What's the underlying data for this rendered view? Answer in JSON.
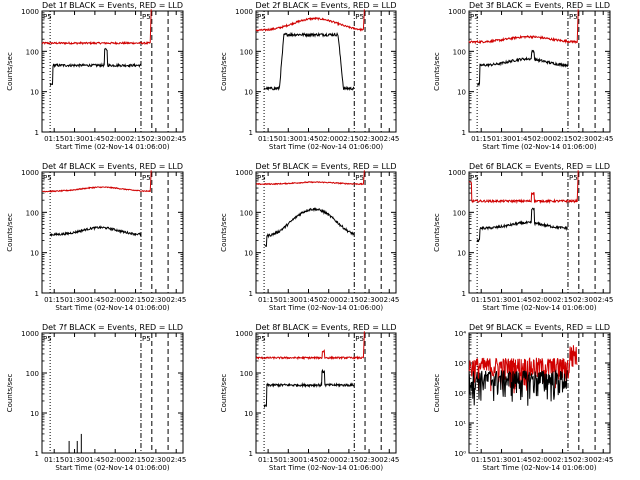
{
  "chart_data": [
    {
      "type": "line",
      "title": "Det 1f BLACK = Events, RED = LLD",
      "ylabel": "Counts/sec",
      "xlabel": "Start Time (02-Nov-14 01:06:00)",
      "x_ticks": [
        "01:15",
        "01:30",
        "01:45",
        "02:00",
        "02:15",
        "02:30",
        "02:45"
      ],
      "y_ticks": [
        "1",
        "10",
        "100",
        "1000"
      ],
      "ylim": [
        1,
        1000
      ],
      "y_scale": "log",
      "xlim": [
        "01:06",
        "02:50"
      ],
      "markers": {
        "dotted": [
          "01:12"
        ],
        "dash_dot": [
          "02:19"
        ],
        "dashed": [
          "02:27",
          "02:39"
        ],
        "label": "P5"
      },
      "series": [
        {
          "color": "#d00000",
          "shape": "flat",
          "start": "01:06",
          "end": "02:26",
          "level": 160,
          "noise": 0.05,
          "tail_spike": 1100
        },
        {
          "color": "#000000",
          "shape": "flat",
          "start": "01:12",
          "end": "02:19",
          "level": 45,
          "noise": 0.07,
          "head_dip": 15,
          "spike_at": "01:53",
          "spike_val": 110
        }
      ]
    },
    {
      "type": "line",
      "title": "Det 2f BLACK = Events, RED = LLD",
      "ylabel": "Counts/sec",
      "xlabel": "Start Time (02-Nov-14 01:06:00)",
      "x_ticks": [
        "01:15",
        "01:30",
        "01:45",
        "02:00",
        "02:15",
        "02:30",
        "02:45"
      ],
      "y_ticks": [
        "1",
        "10",
        "100",
        "1000"
      ],
      "ylim": [
        1,
        1000
      ],
      "y_scale": "log",
      "xlim": [
        "01:06",
        "02:50"
      ],
      "markers": {
        "dotted": [
          "01:12"
        ],
        "dash_dot": [
          "02:19"
        ],
        "dashed": [
          "02:27",
          "02:39"
        ],
        "label": "P5"
      },
      "series": [
        {
          "color": "#d00000",
          "shape": "hump",
          "start": "01:06",
          "end": "02:26",
          "level": 330,
          "peak": 650,
          "noise": 0.05,
          "tail_spike": 1100
        },
        {
          "color": "#000000",
          "shape": "plateau",
          "start": "01:12",
          "end": "02:19",
          "level": 12,
          "peak": 260,
          "noise": 0.08
        }
      ]
    },
    {
      "type": "line",
      "title": "Det 3f BLACK = Events, RED = LLD",
      "ylabel": "Counts/sec",
      "xlabel": "Start Time (02-Nov-14 01:06:00)",
      "x_ticks": [
        "01:15",
        "01:30",
        "01:45",
        "02:00",
        "02:15",
        "02:30",
        "02:45"
      ],
      "y_ticks": [
        "1",
        "10",
        "100",
        "1000"
      ],
      "ylim": [
        1,
        1000
      ],
      "y_scale": "log",
      "xlim": [
        "01:06",
        "02:50"
      ],
      "markers": {
        "dotted": [
          "01:12"
        ],
        "dash_dot": [
          "02:19"
        ],
        "dashed": [
          "02:27",
          "02:39"
        ],
        "label": "P5"
      },
      "series": [
        {
          "color": "#d00000",
          "shape": "hump",
          "start": "01:06",
          "end": "02:26",
          "level": 170,
          "peak": 230,
          "noise": 0.06,
          "tail_spike": 1100
        },
        {
          "color": "#000000",
          "shape": "hump",
          "start": "01:12",
          "end": "02:19",
          "level": 45,
          "peak": 65,
          "noise": 0.07,
          "head_dip": 15,
          "spike_at": "01:53",
          "spike_val": 100
        }
      ]
    },
    {
      "type": "line",
      "title": "Det 4f BLACK = Events, RED = LLD",
      "ylabel": "Counts/sec",
      "xlabel": "Start Time (02-Nov-14 01:06:00)",
      "x_ticks": [
        "01:15",
        "01:30",
        "01:45",
        "02:00",
        "02:15",
        "02:30",
        "02:45"
      ],
      "y_ticks": [
        "1",
        "10",
        "100",
        "1000"
      ],
      "ylim": [
        1,
        1000
      ],
      "y_scale": "log",
      "xlim": [
        "01:06",
        "02:50"
      ],
      "markers": {
        "dotted": [
          "01:12"
        ],
        "dash_dot": [
          "02:19"
        ],
        "dashed": [
          "02:27",
          "02:39"
        ],
        "label": "P5"
      },
      "series": [
        {
          "color": "#d00000",
          "shape": "hump",
          "start": "01:06",
          "end": "02:26",
          "level": 330,
          "peak": 420,
          "noise": 0.03,
          "tail_spike": 1100
        },
        {
          "color": "#000000",
          "shape": "hump",
          "start": "01:12",
          "end": "02:19",
          "level": 28,
          "peak": 42,
          "noise": 0.06
        }
      ]
    },
    {
      "type": "line",
      "title": "Det 5f BLACK = Events, RED = LLD",
      "ylabel": "Counts/sec",
      "xlabel": "Start Time (02-Nov-14 01:06:00)",
      "x_ticks": [
        "01:15",
        "01:30",
        "01:45",
        "02:00",
        "02:15",
        "02:30",
        "02:45"
      ],
      "y_ticks": [
        "1",
        "10",
        "100",
        "1000"
      ],
      "ylim": [
        1,
        1000
      ],
      "y_scale": "log",
      "xlim": [
        "01:06",
        "02:50"
      ],
      "markers": {
        "dotted": [
          "01:12"
        ],
        "dash_dot": [
          "02:19"
        ],
        "dashed": [
          "02:27",
          "02:39"
        ],
        "label": "P5"
      },
      "series": [
        {
          "color": "#d00000",
          "shape": "hump",
          "start": "01:06",
          "end": "02:26",
          "level": 500,
          "peak": 560,
          "noise": 0.03,
          "tail_spike": 1100
        },
        {
          "color": "#000000",
          "shape": "hump",
          "start": "01:12",
          "end": "02:19",
          "level": 25,
          "peak": 120,
          "noise": 0.07,
          "head_dip": 15
        }
      ]
    },
    {
      "type": "line",
      "title": "Det 6f BLACK = Events, RED = LLD",
      "ylabel": "Counts/sec",
      "xlabel": "Start Time (02-Nov-14 01:06:00)",
      "x_ticks": [
        "01:15",
        "01:30",
        "01:45",
        "02:00",
        "02:15",
        "02:30",
        "02:45"
      ],
      "y_ticks": [
        "1",
        "10",
        "100",
        "1000"
      ],
      "ylim": [
        1,
        1000
      ],
      "y_scale": "log",
      "xlim": [
        "01:06",
        "02:50"
      ],
      "markers": {
        "dotted": [
          "01:12"
        ],
        "dash_dot": [
          "02:19"
        ],
        "dashed": [
          "02:27",
          "02:39"
        ],
        "label": "P5"
      },
      "series": [
        {
          "color": "#d00000",
          "shape": "flat",
          "start": "01:06",
          "end": "02:26",
          "level": 190,
          "noise": 0.06,
          "head_val": 550,
          "spike_at": "01:53",
          "spike_val": 300,
          "tail_spike": 1100
        },
        {
          "color": "#000000",
          "shape": "hump",
          "start": "01:12",
          "end": "02:19",
          "level": 40,
          "peak": 55,
          "noise": 0.07,
          "head_dip": 20,
          "spike_at": "01:53",
          "spike_val": 120
        }
      ]
    },
    {
      "type": "line",
      "title": "Det 7f BLACK = Events, RED = LLD",
      "ylabel": "Counts/sec",
      "xlabel": "Start Time (02-Nov-14 01:06:00)",
      "x_ticks": [
        "01:15",
        "01:30",
        "01:45",
        "02:00",
        "02:15",
        "02:30",
        "02:45"
      ],
      "y_ticks": [
        "1",
        "10",
        "100",
        "1000"
      ],
      "ylim": [
        1,
        1000
      ],
      "y_scale": "log",
      "xlim": [
        "01:06",
        "02:50"
      ],
      "markers": {
        "dotted": [
          "01:12"
        ],
        "dash_dot": [
          "02:19"
        ],
        "dashed": [
          "02:27",
          "02:39"
        ],
        "label": "P5"
      },
      "series": [
        {
          "color": "#000000",
          "shape": "spikes",
          "points": [
            [
              "01:26",
              2
            ],
            [
              "01:32",
              2
            ],
            [
              "01:35",
              3
            ]
          ]
        }
      ]
    },
    {
      "type": "line",
      "title": "Det 8f BLACK = Events, RED = LLD",
      "ylabel": "Counts/sec",
      "xlabel": "Start Time (02-Nov-14 01:06:00)",
      "x_ticks": [
        "01:15",
        "01:30",
        "01:45",
        "02:00",
        "02:15",
        "02:30",
        "02:45"
      ],
      "y_ticks": [
        "1",
        "10",
        "100",
        "1000"
      ],
      "ylim": [
        1,
        1000
      ],
      "y_scale": "log",
      "xlim": [
        "01:06",
        "02:50"
      ],
      "markers": {
        "dotted": [
          "01:12"
        ],
        "dash_dot": [
          "02:19"
        ],
        "dashed": [
          "02:27",
          "02:39"
        ],
        "label": "P5"
      },
      "series": [
        {
          "color": "#d00000",
          "shape": "flat",
          "start": "01:06",
          "end": "02:26",
          "level": 240,
          "noise": 0.05,
          "spike_at": "01:56",
          "spike_val": 350,
          "tail_spike": 1100
        },
        {
          "color": "#000000",
          "shape": "flat",
          "start": "01:12",
          "end": "02:19",
          "level": 50,
          "noise": 0.07,
          "head_dip": 15,
          "spike_at": "01:56",
          "spike_val": 110
        }
      ]
    },
    {
      "type": "line",
      "title": "Det 9f BLACK = Events, RED = LLD",
      "ylabel": "Counts/sec",
      "xlabel": "Start Time (02-Nov-14 01:06:00)",
      "x_ticks": [
        "01:15",
        "01:30",
        "01:45",
        "02:00",
        "02:15",
        "02:30",
        "02:45"
      ],
      "y_ticks": [
        "10⁰",
        "10¹",
        "10²",
        "10³",
        "10⁴"
      ],
      "ylim": [
        1,
        10000
      ],
      "y_scale": "log",
      "xlim": [
        "01:06",
        "02:50"
      ],
      "markers": {
        "dotted": [
          "01:12"
        ],
        "dash_dot": [
          "02:19"
        ],
        "dashed": [
          "02:27",
          "02:39"
        ]
      },
      "series": [
        {
          "color": "#d00000",
          "shape": "noisy",
          "start": "01:06",
          "end": "02:26",
          "level": 800,
          "noise": 0.55,
          "tail_level": 2200
        },
        {
          "color": "#000000",
          "shape": "noisy",
          "start": "01:06",
          "end": "02:19",
          "level": 300,
          "noise": 0.55
        }
      ]
    }
  ]
}
